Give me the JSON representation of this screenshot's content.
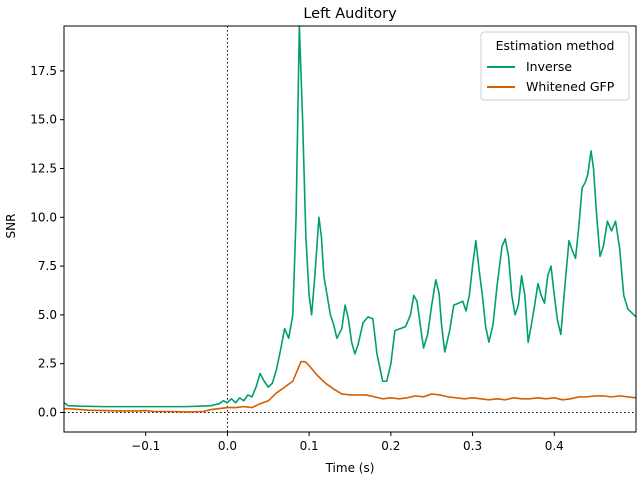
{
  "chart_data": {
    "type": "line",
    "title": "Left Auditory",
    "xlabel": "Time (s)",
    "ylabel": "SNR",
    "xlim": [
      -0.2,
      0.5
    ],
    "ylim": [
      -1.0,
      19.8
    ],
    "xticks": [
      -0.1,
      0.0,
      0.1,
      0.2,
      0.3,
      0.4
    ],
    "xtick_labels": [
      "−0.1",
      "0.0",
      "0.1",
      "0.2",
      "0.3",
      "0.4"
    ],
    "yticks": [
      0.0,
      2.5,
      5.0,
      7.5,
      10.0,
      12.5,
      15.0,
      17.5
    ],
    "ytick_labels": [
      "0.0",
      "2.5",
      "5.0",
      "7.5",
      "10.0",
      "12.5",
      "15.0",
      "17.5"
    ],
    "grid": false,
    "reference_lines": {
      "x": 0.0,
      "y": 0.0,
      "style": "dotted",
      "color": "#000000"
    },
    "legend": {
      "title": "Estimation method",
      "placement": "top-right"
    },
    "series": [
      {
        "name": "Inverse",
        "color": "#009e73",
        "points": [
          [
            -0.2,
            0.5
          ],
          [
            -0.195,
            0.35
          ],
          [
            -0.18,
            0.32
          ],
          [
            -0.15,
            0.3
          ],
          [
            -0.1,
            0.3
          ],
          [
            -0.05,
            0.3
          ],
          [
            -0.02,
            0.35
          ],
          [
            -0.01,
            0.45
          ],
          [
            -0.005,
            0.6
          ],
          [
            0.0,
            0.5
          ],
          [
            0.005,
            0.7
          ],
          [
            0.01,
            0.5
          ],
          [
            0.015,
            0.75
          ],
          [
            0.02,
            0.6
          ],
          [
            0.025,
            0.9
          ],
          [
            0.03,
            0.8
          ],
          [
            0.035,
            1.3
          ],
          [
            0.04,
            2.0
          ],
          [
            0.045,
            1.6
          ],
          [
            0.05,
            1.3
          ],
          [
            0.055,
            1.5
          ],
          [
            0.06,
            2.2
          ],
          [
            0.065,
            3.2
          ],
          [
            0.07,
            4.3
          ],
          [
            0.075,
            3.8
          ],
          [
            0.08,
            5.0
          ],
          [
            0.084,
            10.0
          ],
          [
            0.088,
            19.8
          ],
          [
            0.092,
            15.0
          ],
          [
            0.096,
            9.0
          ],
          [
            0.1,
            6.0
          ],
          [
            0.103,
            5.0
          ],
          [
            0.107,
            7.0
          ],
          [
            0.112,
            10.0
          ],
          [
            0.115,
            9.0
          ],
          [
            0.118,
            7.0
          ],
          [
            0.122,
            6.0
          ],
          [
            0.126,
            5.0
          ],
          [
            0.13,
            4.5
          ],
          [
            0.134,
            3.8
          ],
          [
            0.14,
            4.3
          ],
          [
            0.144,
            5.5
          ],
          [
            0.148,
            4.8
          ],
          [
            0.152,
            3.6
          ],
          [
            0.156,
            3.0
          ],
          [
            0.16,
            3.5
          ],
          [
            0.166,
            4.6
          ],
          [
            0.172,
            4.9
          ],
          [
            0.178,
            4.8
          ],
          [
            0.183,
            3.0
          ],
          [
            0.19,
            1.6
          ],
          [
            0.195,
            1.6
          ],
          [
            0.2,
            2.5
          ],
          [
            0.205,
            4.2
          ],
          [
            0.212,
            4.3
          ],
          [
            0.218,
            4.4
          ],
          [
            0.224,
            5.0
          ],
          [
            0.228,
            6.0
          ],
          [
            0.232,
            5.7
          ],
          [
            0.236,
            4.5
          ],
          [
            0.24,
            3.3
          ],
          [
            0.245,
            4.0
          ],
          [
            0.25,
            5.5
          ],
          [
            0.255,
            6.8
          ],
          [
            0.259,
            6.1
          ],
          [
            0.262,
            4.5
          ],
          [
            0.266,
            3.1
          ],
          [
            0.272,
            4.2
          ],
          [
            0.277,
            5.5
          ],
          [
            0.283,
            5.6
          ],
          [
            0.288,
            5.7
          ],
          [
            0.292,
            5.2
          ],
          [
            0.296,
            6.0
          ],
          [
            0.3,
            7.5
          ],
          [
            0.304,
            8.8
          ],
          [
            0.308,
            7.3
          ],
          [
            0.312,
            6.0
          ],
          [
            0.316,
            4.4
          ],
          [
            0.32,
            3.6
          ],
          [
            0.325,
            4.5
          ],
          [
            0.33,
            6.5
          ],
          [
            0.336,
            8.5
          ],
          [
            0.34,
            8.9
          ],
          [
            0.344,
            8.0
          ],
          [
            0.348,
            6.0
          ],
          [
            0.352,
            5.0
          ],
          [
            0.356,
            5.5
          ],
          [
            0.36,
            7.0
          ],
          [
            0.364,
            6.0
          ],
          [
            0.368,
            3.6
          ],
          [
            0.372,
            4.5
          ],
          [
            0.376,
            5.5
          ],
          [
            0.38,
            6.6
          ],
          [
            0.384,
            6.0
          ],
          [
            0.388,
            5.6
          ],
          [
            0.392,
            7.0
          ],
          [
            0.396,
            7.5
          ],
          [
            0.4,
            6.0
          ],
          [
            0.404,
            4.7
          ],
          [
            0.408,
            4.0
          ],
          [
            0.413,
            6.5
          ],
          [
            0.418,
            8.8
          ],
          [
            0.422,
            8.3
          ],
          [
            0.426,
            7.9
          ],
          [
            0.43,
            9.5
          ],
          [
            0.434,
            11.5
          ],
          [
            0.438,
            11.8
          ],
          [
            0.441,
            12.2
          ],
          [
            0.445,
            13.4
          ],
          [
            0.448,
            12.5
          ],
          [
            0.452,
            10.0
          ],
          [
            0.456,
            8.0
          ],
          [
            0.46,
            8.5
          ],
          [
            0.465,
            9.8
          ],
          [
            0.47,
            9.3
          ],
          [
            0.475,
            9.8
          ],
          [
            0.48,
            8.4
          ],
          [
            0.485,
            6.0
          ],
          [
            0.49,
            5.3
          ],
          [
            0.495,
            5.1
          ],
          [
            0.5,
            4.9
          ]
        ]
      },
      {
        "name": "Whitened GFP",
        "color": "#d55e00",
        "points": [
          [
            -0.2,
            0.2
          ],
          [
            -0.19,
            0.18
          ],
          [
            -0.17,
            0.12
          ],
          [
            -0.15,
            0.1
          ],
          [
            -0.13,
            0.08
          ],
          [
            -0.11,
            0.08
          ],
          [
            -0.1,
            0.1
          ],
          [
            -0.09,
            0.05
          ],
          [
            -0.07,
            0.05
          ],
          [
            -0.05,
            0.03
          ],
          [
            -0.03,
            0.05
          ],
          [
            -0.02,
            0.15
          ],
          [
            0.0,
            0.25
          ],
          [
            0.01,
            0.25
          ],
          [
            0.02,
            0.3
          ],
          [
            0.03,
            0.25
          ],
          [
            0.04,
            0.45
          ],
          [
            0.05,
            0.6
          ],
          [
            0.06,
            1.0
          ],
          [
            0.07,
            1.3
          ],
          [
            0.08,
            1.6
          ],
          [
            0.09,
            2.6
          ],
          [
            0.095,
            2.6
          ],
          [
            0.1,
            2.4
          ],
          [
            0.11,
            1.9
          ],
          [
            0.12,
            1.5
          ],
          [
            0.13,
            1.2
          ],
          [
            0.14,
            0.95
          ],
          [
            0.15,
            0.9
          ],
          [
            0.17,
            0.9
          ],
          [
            0.18,
            0.8
          ],
          [
            0.19,
            0.7
          ],
          [
            0.2,
            0.75
          ],
          [
            0.21,
            0.7
          ],
          [
            0.22,
            0.75
          ],
          [
            0.23,
            0.85
          ],
          [
            0.24,
            0.8
          ],
          [
            0.25,
            0.95
          ],
          [
            0.26,
            0.9
          ],
          [
            0.27,
            0.8
          ],
          [
            0.28,
            0.75
          ],
          [
            0.29,
            0.7
          ],
          [
            0.3,
            0.75
          ],
          [
            0.31,
            0.7
          ],
          [
            0.32,
            0.65
          ],
          [
            0.33,
            0.7
          ],
          [
            0.34,
            0.65
          ],
          [
            0.35,
            0.75
          ],
          [
            0.36,
            0.7
          ],
          [
            0.37,
            0.7
          ],
          [
            0.38,
            0.75
          ],
          [
            0.39,
            0.7
          ],
          [
            0.4,
            0.75
          ],
          [
            0.41,
            0.65
          ],
          [
            0.42,
            0.7
          ],
          [
            0.43,
            0.8
          ],
          [
            0.44,
            0.8
          ],
          [
            0.45,
            0.85
          ],
          [
            0.46,
            0.85
          ],
          [
            0.47,
            0.8
          ],
          [
            0.48,
            0.85
          ],
          [
            0.49,
            0.8
          ],
          [
            0.5,
            0.75
          ]
        ]
      }
    ]
  }
}
